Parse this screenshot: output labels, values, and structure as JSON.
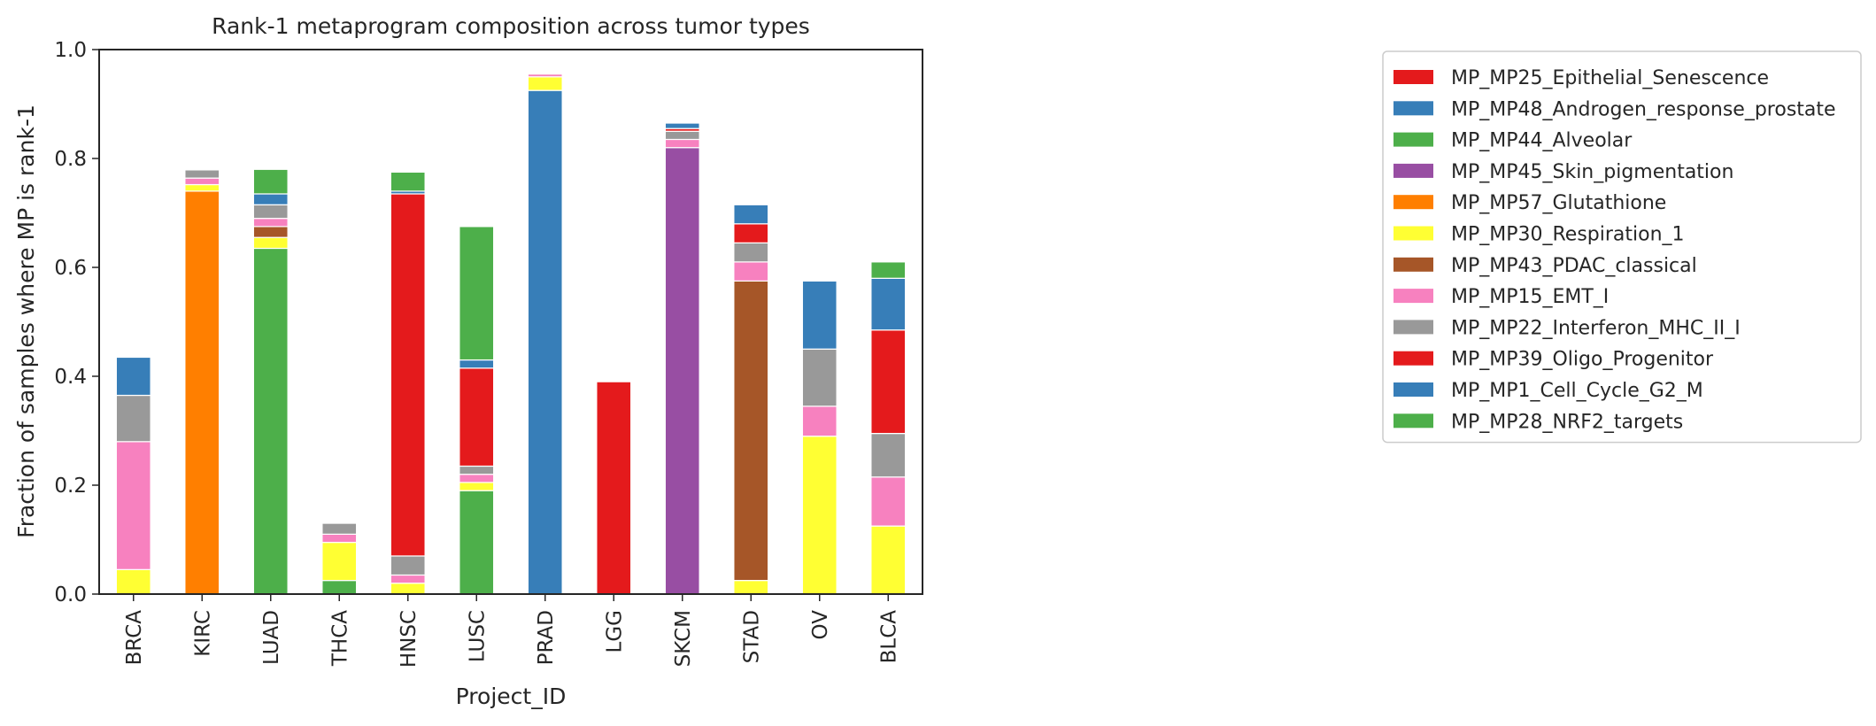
{
  "chart_data": {
    "type": "bar",
    "stacked": true,
    "title": "Rank-1 metaprogram composition across tumor types",
    "xlabel": "Project_ID",
    "ylabel": "Fraction of samples where MP is rank-1",
    "ylim": [
      0,
      1.0
    ],
    "yticks": [
      "0.0",
      "0.2",
      "0.4",
      "0.6",
      "0.8",
      "1.0"
    ],
    "grid": false,
    "legend_position": "right",
    "categories": [
      "BRCA",
      "KIRC",
      "LUAD",
      "THCA",
      "HNSC",
      "LUSC",
      "PRAD",
      "LGG",
      "SKCM",
      "STAD",
      "OV",
      "BLCA"
    ],
    "series": [
      {
        "name": "MP_MP25_Epithelial_Senescence",
        "color": "#e41a1c",
        "values": [
          0,
          0,
          0,
          0,
          0,
          0,
          0,
          0,
          0,
          0,
          0,
          0
        ]
      },
      {
        "name": "MP_MP48_Androgen_response_prostate",
        "color": "#377eb8",
        "values": [
          0,
          0,
          0,
          0,
          0,
          0,
          0.925,
          0,
          0,
          0,
          0,
          0
        ]
      },
      {
        "name": "MP_MP44_Alveolar",
        "color": "#4daf4a",
        "values": [
          0,
          0,
          0.635,
          0.025,
          0,
          0.19,
          0,
          0,
          0,
          0,
          0,
          0
        ]
      },
      {
        "name": "MP_MP45_Skin_pigmentation",
        "color": "#984ea3",
        "values": [
          0,
          0,
          0,
          0,
          0,
          0,
          0,
          0,
          0.82,
          0,
          0,
          0
        ]
      },
      {
        "name": "MP_MP57_Glutathione",
        "color": "#ff7f00",
        "values": [
          0,
          0.74,
          0,
          0,
          0,
          0,
          0,
          0,
          0,
          0,
          0,
          0
        ]
      },
      {
        "name": "MP_MP30_Respiration_1",
        "color": "#ffff33",
        "values": [
          0.045,
          0.012,
          0.02,
          0.07,
          0.02,
          0.015,
          0.025,
          0,
          0,
          0.025,
          0.29,
          0.125
        ]
      },
      {
        "name": "MP_MP43_PDAC_classical",
        "color": "#a65628",
        "values": [
          0,
          0,
          0.02,
          0,
          0,
          0,
          0,
          0,
          0,
          0.55,
          0,
          0
        ]
      },
      {
        "name": "MP_MP15_EMT_I",
        "color": "#f781bf",
        "values": [
          0.235,
          0.012,
          0.015,
          0.015,
          0.015,
          0.015,
          0.005,
          0,
          0.015,
          0.035,
          0.055,
          0.09
        ]
      },
      {
        "name": "MP_MP22_Interferon_MHC_II_I",
        "color": "#999999",
        "values": [
          0.085,
          0.015,
          0.025,
          0.02,
          0.035,
          0.015,
          0,
          0,
          0.015,
          0.035,
          0.105,
          0.08
        ]
      },
      {
        "name": "MP_MP39_Oligo_Progenitor",
        "color": "#e41a1c",
        "values": [
          0,
          0,
          0,
          0,
          0.665,
          0.18,
          0,
          0.39,
          0.005,
          0.035,
          0,
          0.19
        ]
      },
      {
        "name": "MP_MP1_Cell_Cycle_G2_M",
        "color": "#377eb8",
        "values": [
          0.07,
          0,
          0.02,
          0,
          0.005,
          0.015,
          0,
          0,
          0.01,
          0.035,
          0.125,
          0.095
        ]
      },
      {
        "name": "MP_MP28_NRF2_targets",
        "color": "#4daf4a",
        "values": [
          0,
          0,
          0.045,
          0,
          0.035,
          0.245,
          0,
          0,
          0,
          0,
          0,
          0.03
        ]
      }
    ]
  }
}
